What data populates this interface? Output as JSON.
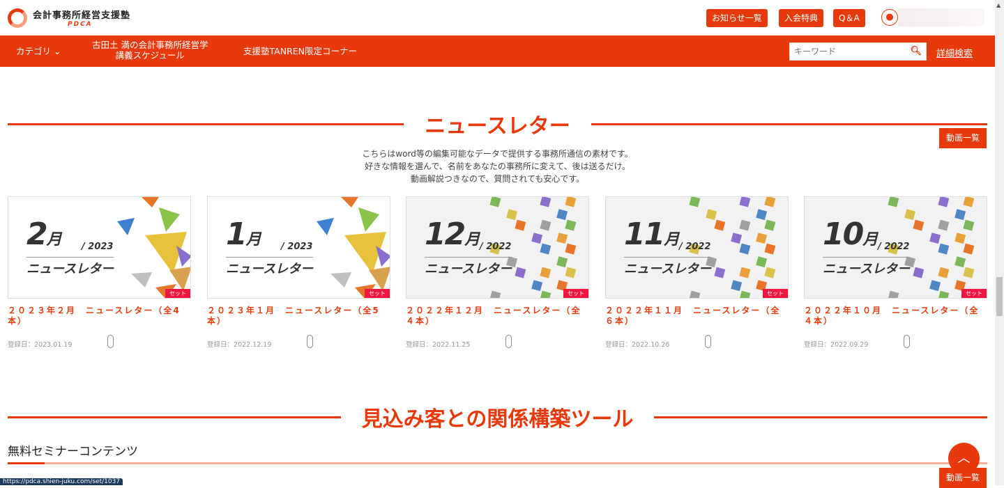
{
  "header": {
    "logo_main": "会計事務所経営支援塾",
    "logo_sub": "PDCA",
    "buttons": [
      "お知らせ一覧",
      "入会特典",
      "Q＆A"
    ]
  },
  "nav": {
    "category": "カテゴリ",
    "schedule_line1": "古田土 満の会計事務所経営学",
    "schedule_line2": "講義スケジュール",
    "tanren": "支援塾TANREN限定コーナー",
    "search_placeholder": "キーワード",
    "advanced": "詳細検索"
  },
  "newsletter": {
    "title": "ニュースレター",
    "list_button": "動画一覧",
    "desc": [
      "こちらはword等の編集可能なデータで提供する事務所通信の素材です。",
      "好きな情報を選んで、名前をあなたの事務所に変えて、後は送るだけ。",
      "動画解説つきなので、質問されても安心です。"
    ],
    "cards": [
      {
        "month": "2",
        "year": "2023",
        "label": "ニュースレター",
        "badge": "セット",
        "title": "２０２３年２月　ニュースレター（全4本）",
        "date": "登録日：2023.01.19",
        "style": "triangles"
      },
      {
        "month": "1",
        "year": "2023",
        "label": "ニュースレター",
        "badge": "セット",
        "title": "２０２３年１月　ニュースレター（全5本）",
        "date": "登録日：2022.12.19",
        "style": "triangles"
      },
      {
        "month": "12",
        "year": "2022",
        "label": "ニュースレター",
        "badge": "セット",
        "title": "２０２２年１２月　ニュースレター（全４本）",
        "date": "登録日：2022.11.25",
        "style": "squares"
      },
      {
        "month": "11",
        "year": "2022",
        "label": "ニュースレター",
        "badge": "セット",
        "title": "２０２２年１１月　ニュースレター（全６本）",
        "date": "登録日：2022.10.26",
        "style": "squares"
      },
      {
        "month": "10",
        "year": "2022",
        "label": "ニュースレター",
        "badge": "セット",
        "title": "２０２２年１０月　ニュースレター（全４本）",
        "date": "登録日：2022.09.29",
        "style": "squares"
      }
    ],
    "month_suffix": "月"
  },
  "tools": {
    "title": "見込み客との関係構築ツール",
    "subsection": "無料セミナーコンテンツ",
    "list_button": "動画一覧"
  },
  "status_url": "https://pdca.shien-juku.com/set/1037",
  "colors": {
    "accent": "#e8390d",
    "badge": "#f0163f"
  }
}
